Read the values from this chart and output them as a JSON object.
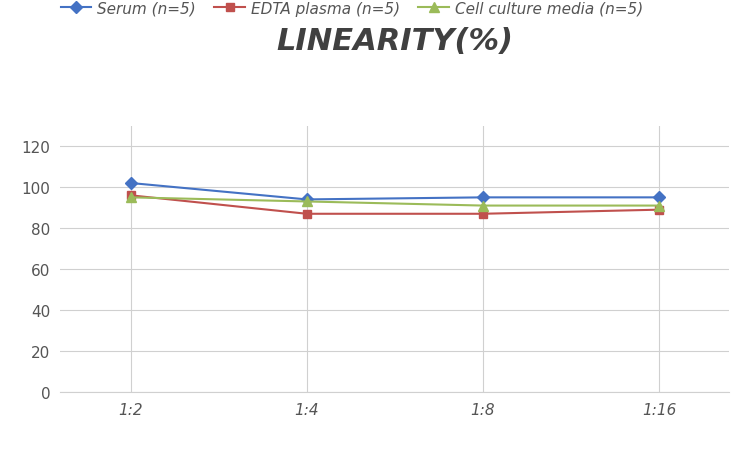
{
  "title": "LINEARITY(%)",
  "x_labels": [
    "1:2",
    "1:4",
    "1:8",
    "1:16"
  ],
  "x_positions": [
    0,
    1,
    2,
    3
  ],
  "series": [
    {
      "label": "Serum (n=5)",
      "values": [
        102,
        94,
        95,
        95
      ],
      "color": "#4472C4",
      "marker": "D",
      "marker_size": 6,
      "linewidth": 1.5
    },
    {
      "label": "EDTA plasma (n=5)",
      "values": [
        96,
        87,
        87,
        89
      ],
      "color": "#C0504D",
      "marker": "s",
      "marker_size": 6,
      "linewidth": 1.5
    },
    {
      "label": "Cell culture media (n=5)",
      "values": [
        95,
        93,
        91,
        91
      ],
      "color": "#9BBB59",
      "marker": "^",
      "marker_size": 7,
      "linewidth": 1.5
    }
  ],
  "ylim": [
    0,
    130
  ],
  "yticks": [
    0,
    20,
    40,
    60,
    80,
    100,
    120
  ],
  "title_fontsize": 22,
  "legend_fontsize": 11,
  "tick_fontsize": 11,
  "background_color": "#ffffff",
  "grid_color": "#d0d0d0",
  "title_color": "#404040"
}
